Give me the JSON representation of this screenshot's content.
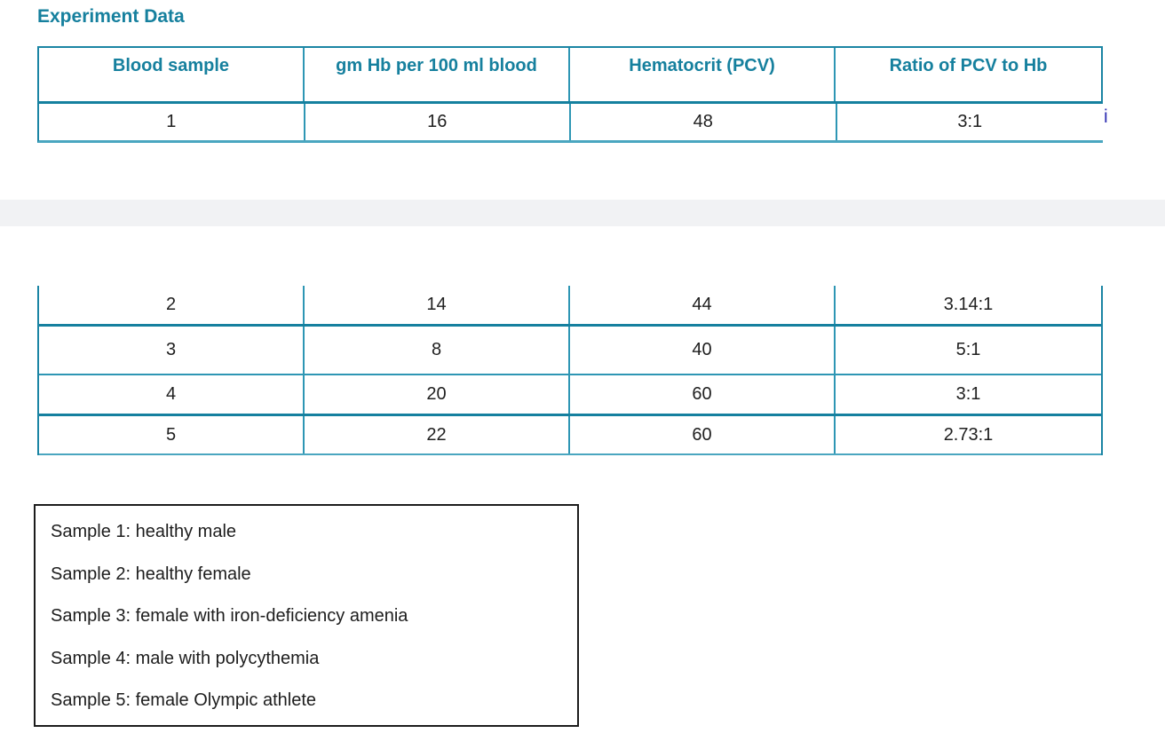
{
  "title": "Experiment Data",
  "colors": {
    "accent_teal": "#16809e",
    "border_teal_dark": "#15809f",
    "border_teal_mid": "#2e96b4",
    "border_teal_light": "#4aa6c0",
    "band_gray": "#f1f2f4",
    "stray_text_navy": "#2f2fb2"
  },
  "table": {
    "headers": [
      "Blood sample",
      "gm Hb per 100 ml blood",
      "Hematocrit (PCV)",
      "Ratio of PCV to Hb"
    ],
    "row1": [
      "1",
      "16",
      "48",
      "3:1"
    ],
    "rows2": [
      [
        "2",
        "14",
        "44",
        "3.14:1"
      ],
      [
        "3",
        "8",
        "40",
        "5:1"
      ],
      [
        "4",
        "20",
        "60",
        "3:1"
      ],
      [
        "5",
        "22",
        "60",
        "2.73:1"
      ]
    ]
  },
  "stray_text": "i",
  "legend": {
    "items": [
      "Sample 1: healthy male",
      "Sample 2: healthy female",
      "Sample 3: female with iron-deficiency amenia",
      "Sample 4: male with polycythemia",
      "Sample 5: female Olympic athlete"
    ]
  }
}
